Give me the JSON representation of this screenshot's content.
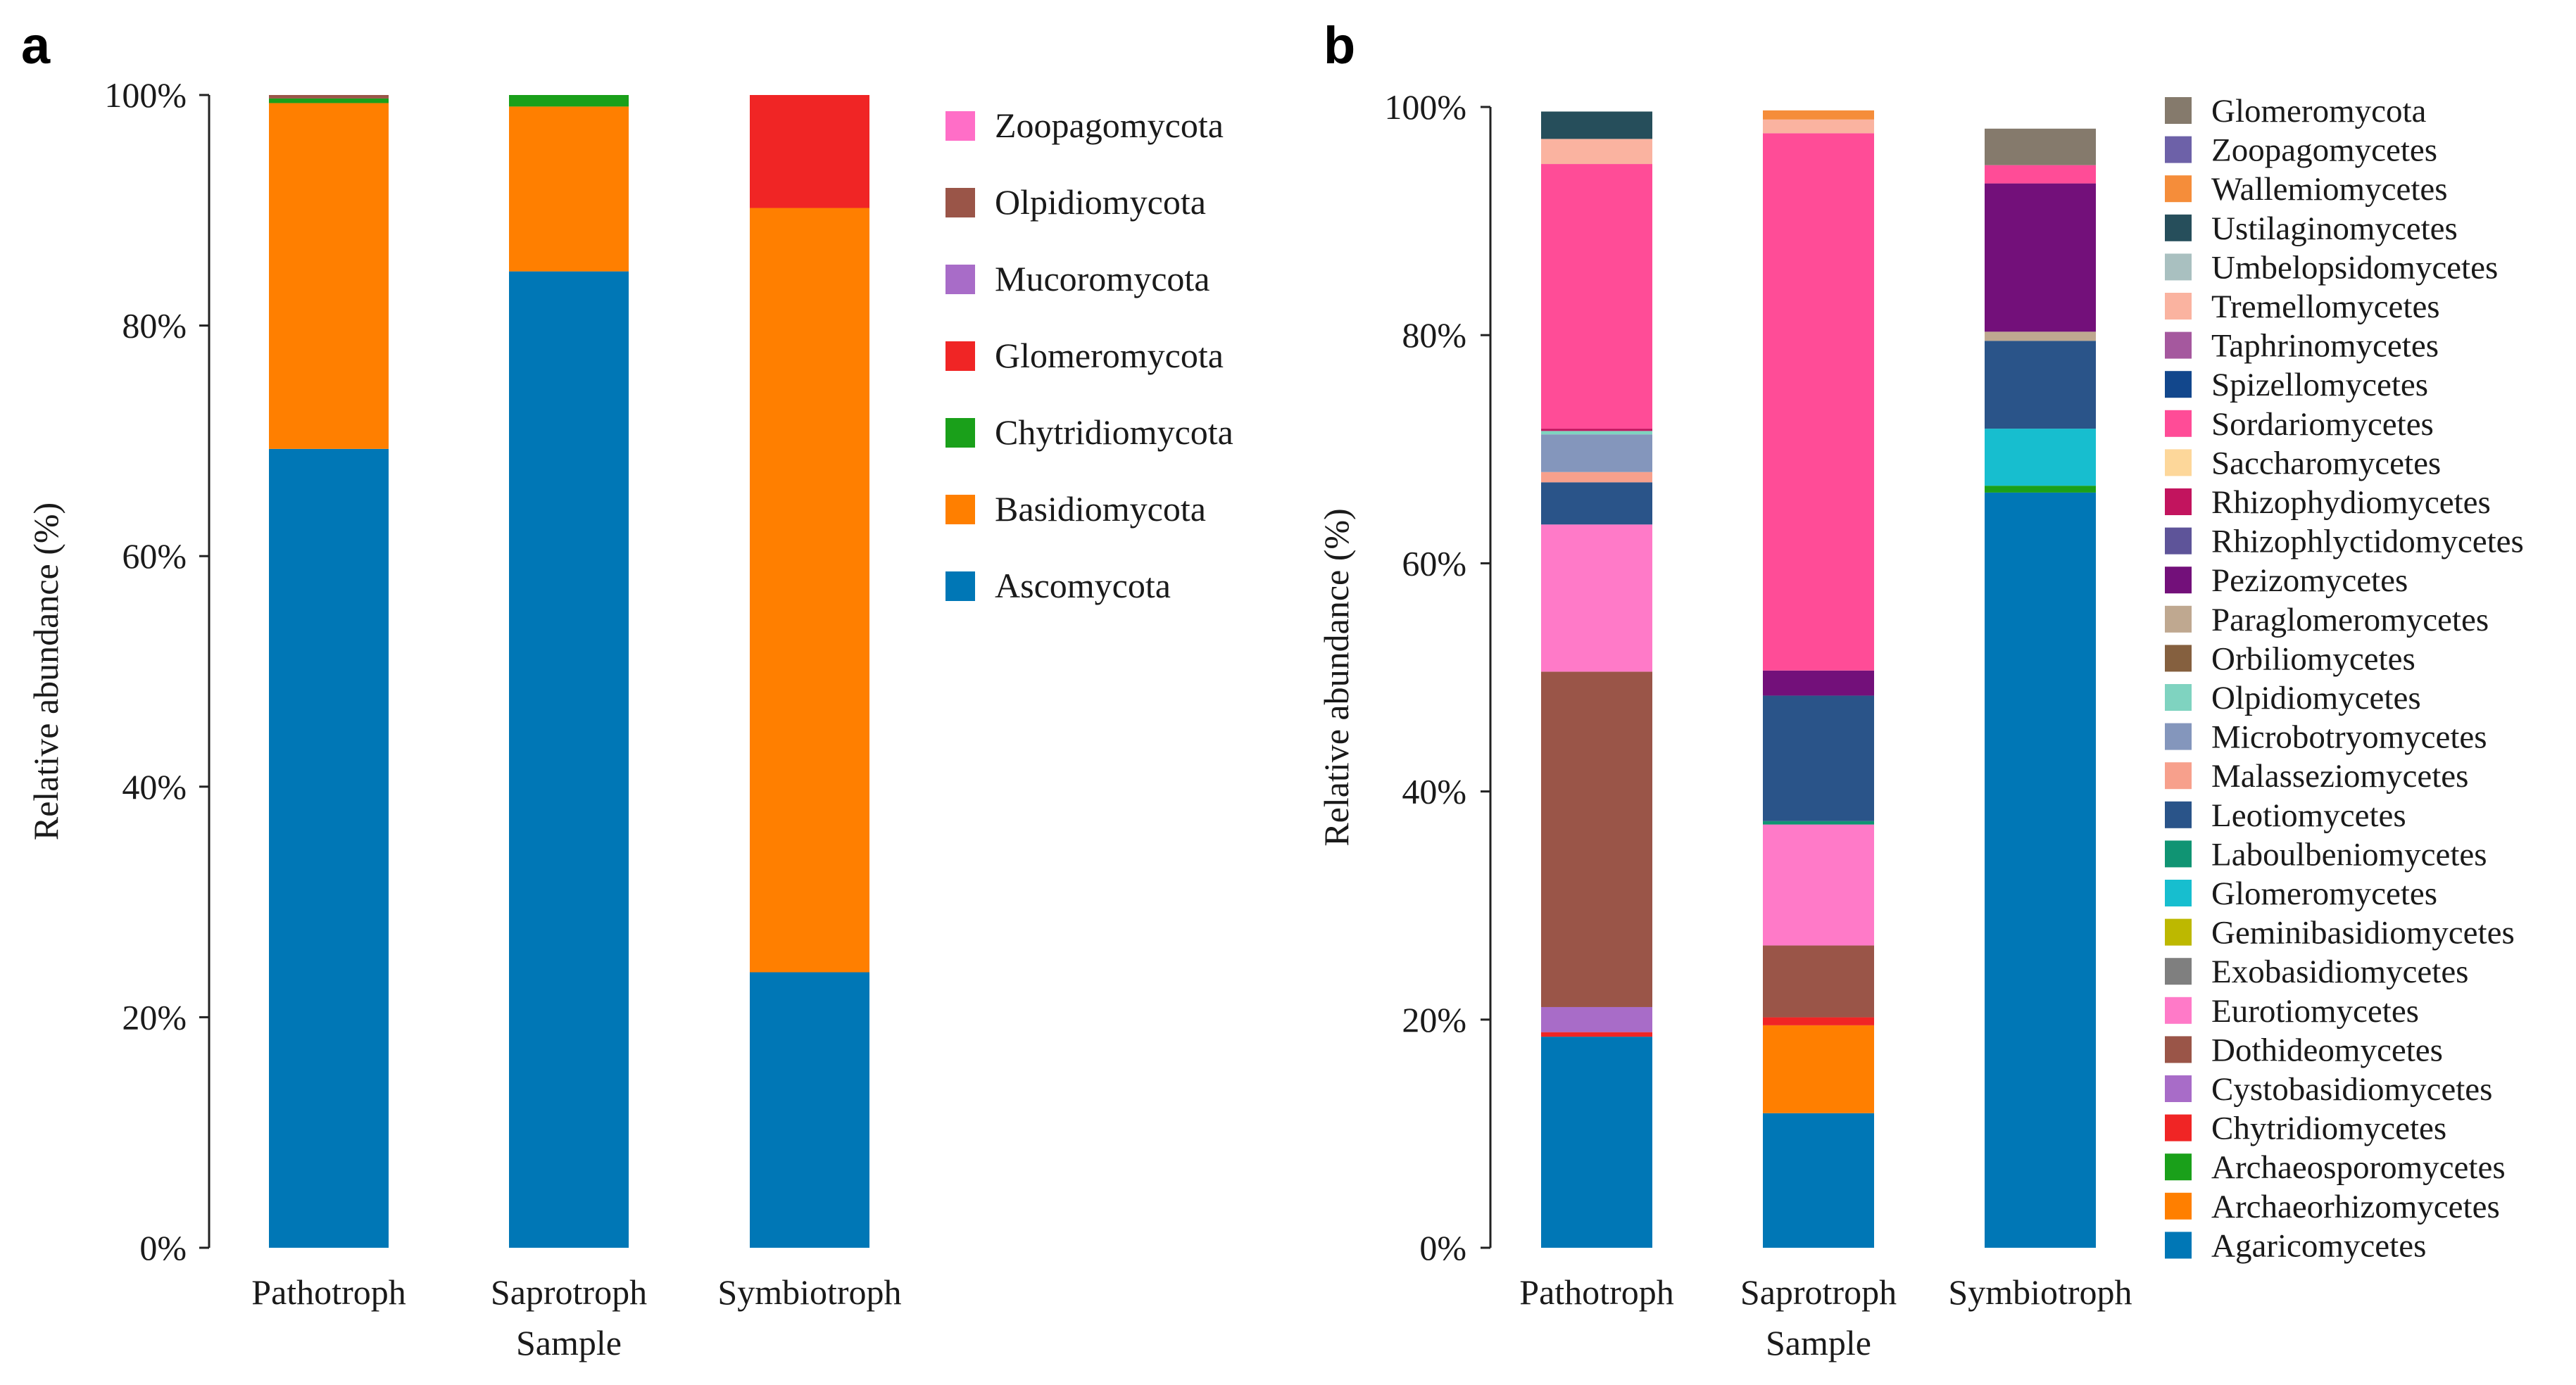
{
  "chart_data": [
    {
      "panel": "a",
      "type": "bar",
      "stacked": true,
      "xlabel": "Sample",
      "ylabel": "Relative abundance (%)",
      "ylim": [
        0,
        100
      ],
      "yticks": [
        "0%",
        "20%",
        "40%",
        "60%",
        "80%",
        "100%"
      ],
      "categories": [
        "Pathotroph",
        "Saprotroph",
        "Symbiotroph"
      ],
      "legend_position": "right",
      "series": [
        {
          "name": "Ascomycota",
          "color": "#0077B6",
          "values": [
            69.3,
            84.7,
            23.9
          ]
        },
        {
          "name": "Basidiomycota",
          "color": "#FF7F00",
          "values": [
            30.0,
            14.3,
            66.3
          ]
        },
        {
          "name": "Chytridiomycota",
          "color": "#1AA01A",
          "values": [
            0.4,
            1.0,
            0
          ]
        },
        {
          "name": "Glomeromycota",
          "color": "#F02525",
          "values": [
            0,
            0,
            9.8
          ]
        },
        {
          "name": "Mucoromycota",
          "color": "#A86CC8",
          "values": [
            0,
            0,
            0
          ]
        },
        {
          "name": "Olpidiomycota",
          "color": "#9A5548",
          "values": [
            0.3,
            0,
            0
          ]
        },
        {
          "name": "Zoopagomycota",
          "color": "#FF6EC7",
          "values": [
            0,
            0,
            0
          ]
        }
      ]
    },
    {
      "panel": "b",
      "type": "bar",
      "stacked": true,
      "xlabel": "Sample",
      "ylabel": "Relative abundance (%)",
      "ylim": [
        0,
        100
      ],
      "yticks": [
        "0%",
        "20%",
        "40%",
        "60%",
        "80%",
        "100%"
      ],
      "categories": [
        "Pathotroph",
        "Saprotroph",
        "Symbiotroph"
      ],
      "legend_position": "right",
      "series": [
        {
          "name": "Agaricomycetes",
          "color": "#0077B6",
          "values": [
            18.5,
            11.8,
            66.2
          ]
        },
        {
          "name": "Archaeorhizomycetes",
          "color": "#FF7F00",
          "values": [
            0,
            7.7,
            0
          ]
        },
        {
          "name": "Archaeosporomycetes",
          "color": "#1AA01A",
          "values": [
            0,
            0,
            0.6
          ]
        },
        {
          "name": "Chytridiomycetes",
          "color": "#F02525",
          "values": [
            0.4,
            0.7,
            0
          ]
        },
        {
          "name": "Cystobasidiomycetes",
          "color": "#A86CC8",
          "values": [
            2.2,
            0,
            0
          ]
        },
        {
          "name": "Dothideomycetes",
          "color": "#9A5548",
          "values": [
            29.4,
            6.3,
            0
          ]
        },
        {
          "name": "Eurotiomycetes",
          "color": "#FF7AC8",
          "values": [
            12.9,
            10.6,
            0
          ]
        },
        {
          "name": "Exobasidiomycetes",
          "color": "#7F7F7F",
          "values": [
            0,
            0,
            0
          ]
        },
        {
          "name": "Geminibasidiomycetes",
          "color": "#BDB800",
          "values": [
            0,
            0,
            0
          ]
        },
        {
          "name": "Glomeromycetes",
          "color": "#17BECF",
          "values": [
            0,
            0,
            5.0
          ]
        },
        {
          "name": "Laboulbeniomycetes",
          "color": "#109473",
          "values": [
            0,
            0.3,
            0
          ]
        },
        {
          "name": "Leotiomycetes",
          "color": "#2A5489",
          "values": [
            3.7,
            11.0,
            7.7
          ]
        },
        {
          "name": "Malasseziomycetes",
          "color": "#F7A08C",
          "values": [
            0.9,
            0,
            0
          ]
        },
        {
          "name": "Microbotryomycetes",
          "color": "#8496BC",
          "values": [
            3.3,
            0,
            0
          ]
        },
        {
          "name": "Olpidiomycetes",
          "color": "#7FD3C0",
          "values": [
            0.3,
            0,
            0
          ]
        },
        {
          "name": "Orbiliomycetes",
          "color": "#85603F",
          "values": [
            0,
            0,
            0
          ]
        },
        {
          "name": "Paraglomeromycetes",
          "color": "#BFA890",
          "values": [
            0,
            0,
            0.8
          ]
        },
        {
          "name": "Pezizomycetes",
          "color": "#73107A",
          "values": [
            0,
            2.2,
            13.0
          ]
        },
        {
          "name": "Rhizophlyctidomycetes",
          "color": "#5E5499",
          "values": [
            0,
            0,
            0
          ]
        },
        {
          "name": "Rhizophydiomycetes",
          "color": "#C2145E",
          "values": [
            0.2,
            0,
            0
          ]
        },
        {
          "name": "Saccharomycetes",
          "color": "#FDD79A",
          "values": [
            0,
            0,
            0
          ]
        },
        {
          "name": "Sordariomycetes",
          "color": "#FF4C97",
          "values": [
            23.2,
            47.1,
            1.6
          ]
        },
        {
          "name": "Spizellomycetes",
          "color": "#12478C",
          "values": [
            0,
            0,
            0
          ]
        },
        {
          "name": "Taphrinomycetes",
          "color": "#A5589E",
          "values": [
            0,
            0,
            0
          ]
        },
        {
          "name": "Tremellomycetes",
          "color": "#FAB3A0",
          "values": [
            2.2,
            1.2,
            0
          ]
        },
        {
          "name": "Umbelopsidomycetes",
          "color": "#A9C0C0",
          "values": [
            0,
            0,
            0
          ]
        },
        {
          "name": "Ustilaginomycetes",
          "color": "#264E5B",
          "values": [
            2.4,
            0,
            0
          ]
        },
        {
          "name": "Wallemiomycetes",
          "color": "#F58D3A",
          "values": [
            0,
            0.8,
            0
          ]
        },
        {
          "name": "Zoopagomycetes",
          "color": "#6D61A8",
          "values": [
            0,
            0,
            0
          ]
        },
        {
          "name": "Glomeromycota",
          "color": "#857A6C",
          "values": [
            0,
            0,
            3.2
          ]
        }
      ]
    }
  ],
  "panel_labels": {
    "a": "a",
    "b": "b"
  }
}
